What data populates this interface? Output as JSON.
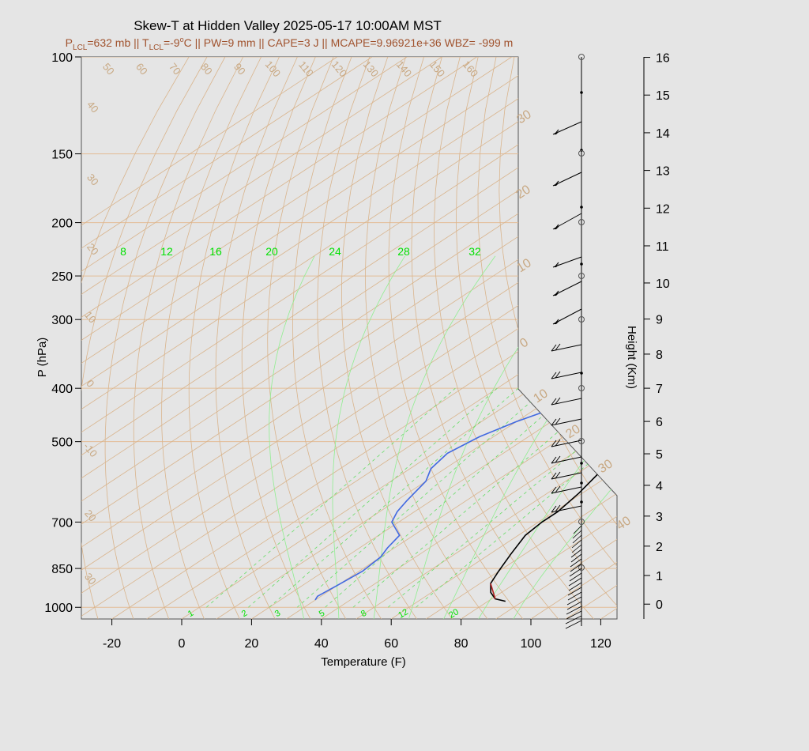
{
  "title": "Skew-T at Hidden Valley 2025-05-17 10:00AM MST",
  "subtitle": {
    "p_lcl_prefix": "P",
    "p_lcl_sub": "LCL",
    "p_lcl_value": "=632 mb || T",
    "t_lcl_sub": "LCL",
    "t_lcl_value": "=-9",
    "deg": "o",
    "rest": "C || PW=9 mm || CAPE=3 J || MCAPE=9.96921e+36 WBZ= -999 m"
  },
  "chart_data": {
    "type": "line",
    "xlabel": "Temperature (F)",
    "ylabel": "P (hPa)",
    "y2label": "Height (Km)",
    "x_ticks": [
      "-20",
      "0",
      "20",
      "40",
      "60",
      "80",
      "100",
      "120"
    ],
    "p_ticks": [
      "100",
      "150",
      "200",
      "250",
      "300",
      "400",
      "500",
      "700",
      "850",
      "1000"
    ],
    "height_ticks": [
      "0",
      "1",
      "2",
      "3",
      "4",
      "5",
      "6",
      "7",
      "8",
      "9",
      "10",
      "11",
      "12",
      "13",
      "14",
      "15",
      "16"
    ],
    "isotherm_labels_top": [
      "50",
      "60",
      "70",
      "80",
      "90",
      "100",
      "110",
      "120",
      "130",
      "140",
      "150",
      "160"
    ],
    "isotherm_labels_left": [
      "40",
      "30",
      "20",
      "10",
      "0",
      "-10",
      "20",
      "30"
    ],
    "isotherm_labels_right": [
      "30",
      "20",
      "10",
      "0",
      "10",
      "20",
      "30",
      "40"
    ],
    "mixing_labels_upper": [
      "8",
      "12",
      "16",
      "20",
      "24",
      "28",
      "32"
    ],
    "mixing_labels_lower": [
      "1",
      "2",
      "3",
      "5",
      "8",
      "12",
      "20"
    ],
    "series": [
      {
        "name": "temperature",
        "color": "#000000",
        "x": [
          85,
          81,
          77,
          73,
          70,
          66,
          62,
          61,
          61,
          59,
          54,
          48,
          41,
          34,
          24,
          19,
          17,
          18,
          26,
          35,
          46,
          55
        ],
        "p": [
          975,
          965,
          940,
          905,
          860,
          800,
          740,
          700,
          670,
          620,
          540,
          460,
          400,
          340,
          270,
          240,
          210,
          175,
          150,
          120,
          100,
          100
        ]
      },
      {
        "name": "dewpoint",
        "color": "#4169e1",
        "x": [
          30,
          29,
          30,
          31,
          30,
          28,
          26,
          18,
          15,
          13,
          10,
          6,
          4,
          6,
          10,
          18,
          26,
          26,
          20,
          10,
          4,
          4,
          11,
          25,
          38
        ],
        "p": [
          970,
          955,
          910,
          860,
          810,
          780,
          740,
          700,
          670,
          640,
          590,
          560,
          525,
          490,
          460,
          420,
          380,
          350,
          300,
          250,
          200,
          170,
          130,
          110,
          100
        ]
      }
    ]
  }
}
